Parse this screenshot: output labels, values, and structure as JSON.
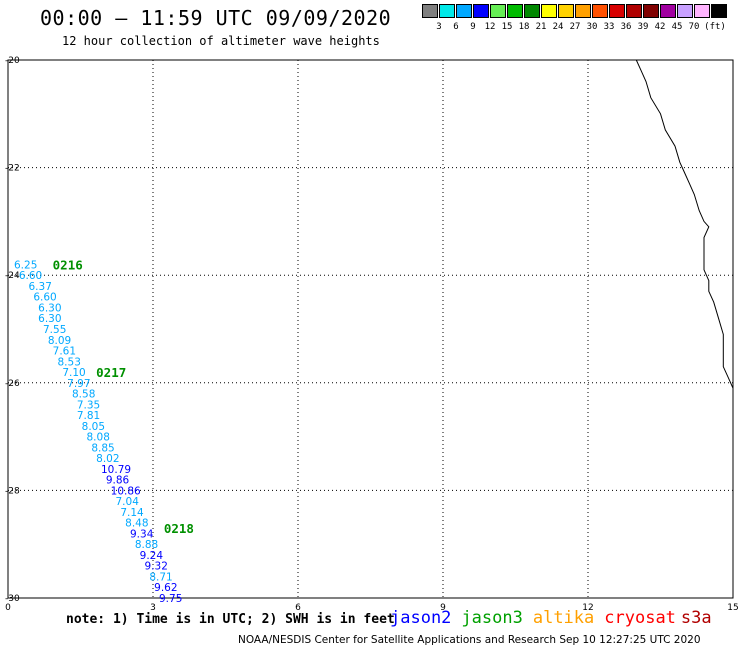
{
  "title": "00:00 – 11:59 UTC 09/09/2020",
  "subtitle": "12 hour collection of altimeter wave heights",
  "legend": {
    "colors": [
      "#7f7f7f",
      "#00e8e8",
      "#00a8ff",
      "#0000ff",
      "#66ee55",
      "#00bb00",
      "#008800",
      "#ffff00",
      "#ffd200",
      "#ffa000",
      "#ff5000",
      "#d80000",
      "#b00000",
      "#800000",
      "#a000a0",
      "#c8a0ff",
      "#ffb4ff",
      "#000000"
    ],
    "ticks": [
      "3",
      "6",
      "9",
      "12",
      "15",
      "18",
      "21",
      "24",
      "27",
      "30",
      "33",
      "36",
      "39",
      "42",
      "45",
      "70",
      "(ft)"
    ]
  },
  "axes": {
    "y_ticks": [
      "-20",
      "-22",
      "-24",
      "-26",
      "-28",
      "-30"
    ],
    "x_ticks": [
      "0",
      "3",
      "6",
      "9",
      "12",
      "15"
    ]
  },
  "passes": [
    {
      "label": "0216",
      "lon": 0.8,
      "lat": -23.8
    },
    {
      "label": "0217",
      "lon": 1.7,
      "lat": -25.8
    },
    {
      "label": "0218",
      "lon": 3.1,
      "lat": -28.7
    }
  ],
  "observations": [
    {
      "lon": 0.0,
      "lat": -23.8,
      "swh": "6.25",
      "color": "#00a8ff"
    },
    {
      "lon": 0.1,
      "lat": -24.0,
      "swh": "6.60",
      "color": "#00a8ff"
    },
    {
      "lon": 0.3,
      "lat": -24.2,
      "swh": "6.37",
      "color": "#00a8ff"
    },
    {
      "lon": 0.4,
      "lat": -24.4,
      "swh": "6.60",
      "color": "#00a8ff"
    },
    {
      "lon": 0.5,
      "lat": -24.6,
      "swh": "6.30",
      "color": "#00a8ff"
    },
    {
      "lon": 0.5,
      "lat": -24.8,
      "swh": "6.30",
      "color": "#00a8ff"
    },
    {
      "lon": 0.6,
      "lat": -25.0,
      "swh": "7.55",
      "color": "#00a8ff"
    },
    {
      "lon": 0.7,
      "lat": -25.2,
      "swh": "8.09",
      "color": "#00a8ff"
    },
    {
      "lon": 0.8,
      "lat": -25.4,
      "swh": "7.61",
      "color": "#00a8ff"
    },
    {
      "lon": 0.9,
      "lat": -25.6,
      "swh": "8.53",
      "color": "#00a8ff"
    },
    {
      "lon": 1.0,
      "lat": -25.8,
      "swh": "7.10",
      "color": "#00a8ff"
    },
    {
      "lon": 1.1,
      "lat": -26.0,
      "swh": "7.97",
      "color": "#00a8ff"
    },
    {
      "lon": 1.2,
      "lat": -26.2,
      "swh": "8.58",
      "color": "#00a8ff"
    },
    {
      "lon": 1.3,
      "lat": -26.4,
      "swh": "7.35",
      "color": "#00a8ff"
    },
    {
      "lon": 1.3,
      "lat": -26.6,
      "swh": "7.81",
      "color": "#00a8ff"
    },
    {
      "lon": 1.4,
      "lat": -26.8,
      "swh": "8.05",
      "color": "#00a8ff"
    },
    {
      "lon": 1.5,
      "lat": -27.0,
      "swh": "8.08",
      "color": "#00a8ff"
    },
    {
      "lon": 1.6,
      "lat": -27.2,
      "swh": "8.85",
      "color": "#00a8ff"
    },
    {
      "lon": 1.7,
      "lat": -27.4,
      "swh": "8.02",
      "color": "#00a8ff"
    },
    {
      "lon": 1.8,
      "lat": -27.6,
      "swh": "10.79",
      "color": "#0000ff"
    },
    {
      "lon": 1.9,
      "lat": -27.8,
      "swh": "9.86",
      "color": "#0000ff"
    },
    {
      "lon": 2.0,
      "lat": -28.0,
      "swh": "10.86",
      "color": "#0000ff"
    },
    {
      "lon": 2.1,
      "lat": -28.2,
      "swh": "7.04",
      "color": "#00a8ff"
    },
    {
      "lon": 2.2,
      "lat": -28.4,
      "swh": "7.14",
      "color": "#00a8ff"
    },
    {
      "lon": 2.3,
      "lat": -28.6,
      "swh": "8.48",
      "color": "#00a8ff"
    },
    {
      "lon": 2.4,
      "lat": -28.8,
      "swh": "9.34",
      "color": "#0000ff"
    },
    {
      "lon": 2.5,
      "lat": -29.0,
      "swh": "8.88",
      "color": "#00a8ff"
    },
    {
      "lon": 2.6,
      "lat": -29.2,
      "swh": "9.24",
      "color": "#0000ff"
    },
    {
      "lon": 2.7,
      "lat": -29.4,
      "swh": "9.32",
      "color": "#0000ff"
    },
    {
      "lon": 2.8,
      "lat": -29.6,
      "swh": "8.71",
      "color": "#00a8ff"
    },
    {
      "lon": 2.9,
      "lat": -29.8,
      "swh": "9.62",
      "color": "#0000ff"
    },
    {
      "lon": 3.0,
      "lat": -30.0,
      "swh": "9.75",
      "color": "#0000ff"
    }
  ],
  "coastline": [
    [
      13.0,
      -20.0
    ],
    [
      13.1,
      -20.2
    ],
    [
      13.2,
      -20.4
    ],
    [
      13.3,
      -20.7
    ],
    [
      13.5,
      -21.0
    ],
    [
      13.6,
      -21.3
    ],
    [
      13.8,
      -21.6
    ],
    [
      13.9,
      -21.9
    ],
    [
      14.0,
      -22.1
    ],
    [
      14.1,
      -22.3
    ],
    [
      14.2,
      -22.5
    ],
    [
      14.3,
      -22.8
    ],
    [
      14.4,
      -23.0
    ],
    [
      14.5,
      -23.1
    ],
    [
      14.4,
      -23.3
    ],
    [
      14.4,
      -23.6
    ],
    [
      14.4,
      -23.9
    ],
    [
      14.5,
      -24.1
    ],
    [
      14.5,
      -24.3
    ],
    [
      14.6,
      -24.5
    ],
    [
      14.7,
      -24.8
    ],
    [
      14.8,
      -25.1
    ],
    [
      14.8,
      -25.4
    ],
    [
      14.8,
      -25.7
    ],
    [
      14.9,
      -25.9
    ],
    [
      15.0,
      -26.1
    ],
    [
      15.0,
      -26.3
    ]
  ],
  "note": "note: 1) Time is in UTC; 2) SWH is in feet",
  "satellites": [
    {
      "name": "jason2",
      "color": "#0000ff"
    },
    {
      "name": "jason3",
      "color": "#00a000"
    },
    {
      "name": "altika",
      "color": "#ffa000"
    },
    {
      "name": "cryosat",
      "color": "#ff0000"
    },
    {
      "name": "s3a",
      "color": "#b00000"
    }
  ],
  "footer": "NOAA/NESDIS Center for Satellite Applications and Research   Sep 10 12:27:25 UTC 2020"
}
